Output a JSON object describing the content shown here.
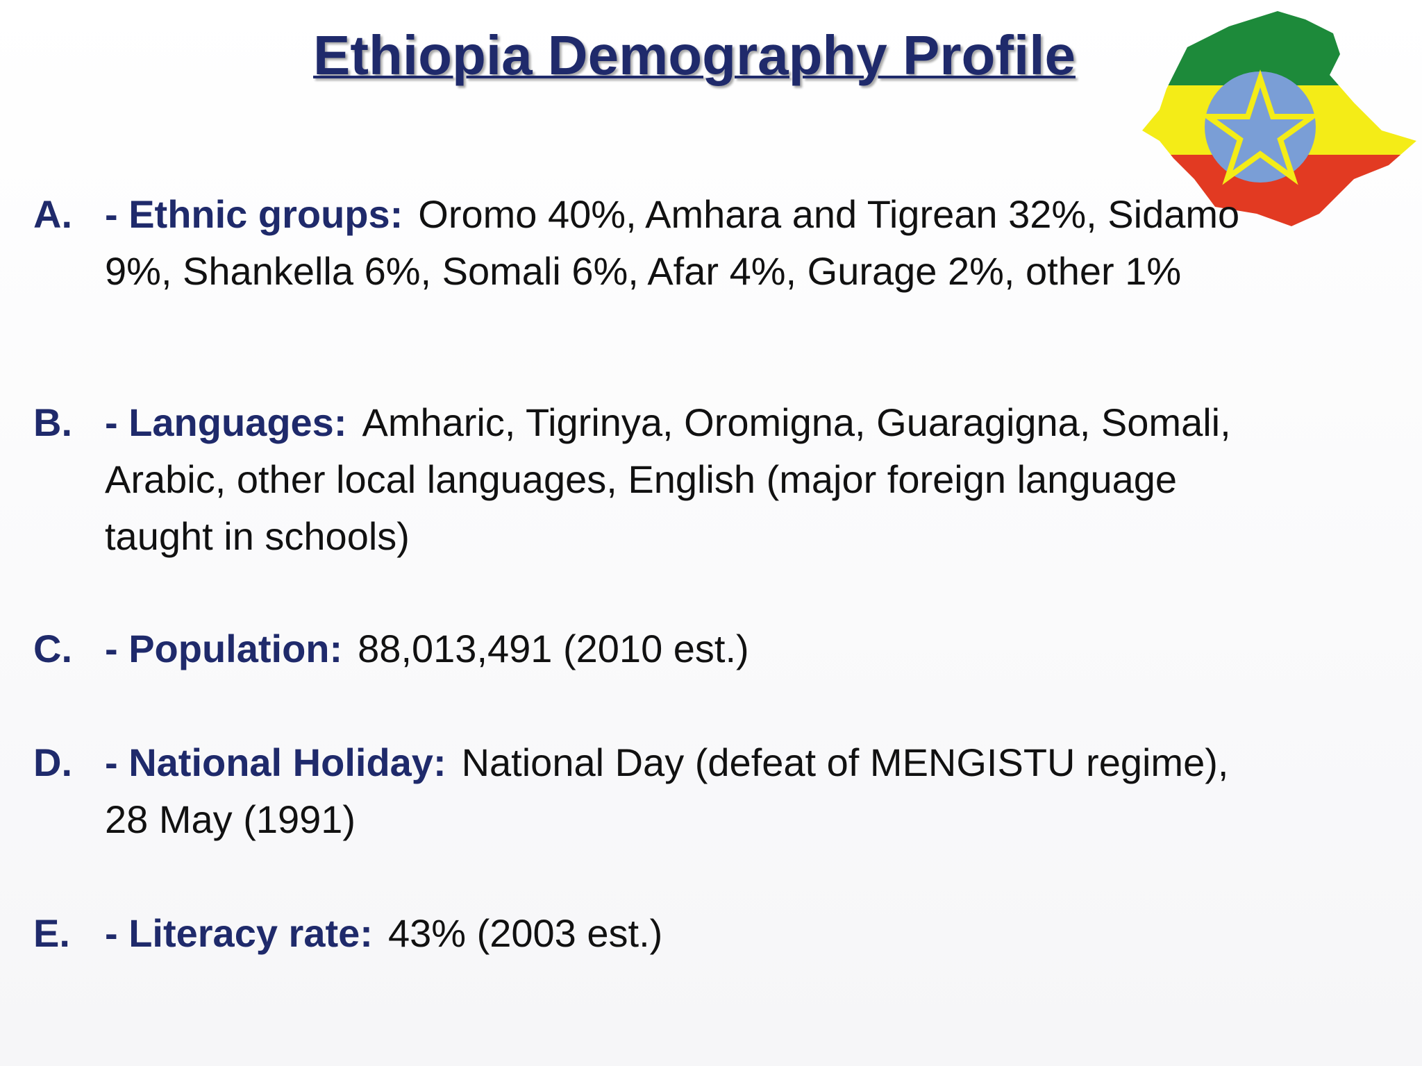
{
  "title": "Ethiopia Demography Profile",
  "items": [
    {
      "marker": "A.",
      "label": "- Ethnic groups:",
      "text": "Oromo 40%, Amhara and Tigrean 32%, Sidamo 9%, Shankella 6%, Somali 6%, Afar 4%, Gurage 2%, other 1%"
    },
    {
      "marker": "B.",
      "label": "- Languages:",
      "text": "Amharic, Tigrinya, Oromigna, Guaragigna, Somali, Arabic, other local languages, English (major foreign language taught in schools)"
    },
    {
      "marker": "C.",
      "label": "- Population:",
      "text": "88,013,491 (2010 est.)"
    },
    {
      "marker": "D.",
      "label": "- National Holiday:",
      "text": "National Day (defeat of MENGISTU regime), 28 May (1991)"
    },
    {
      "marker": "E.",
      "label": "- Literacy rate:",
      "text": "43% (2003 est.)"
    }
  ]
}
